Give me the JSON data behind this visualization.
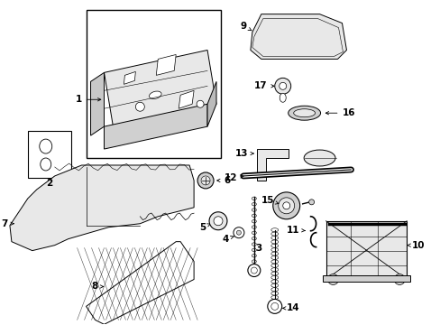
{
  "background": "#ffffff",
  "lc": "#000000",
  "gray": "#d0d0d0",
  "lightgray": "#e8e8e8",
  "fs": 7.5,
  "fw": "bold",
  "fig_w": 4.89,
  "fig_h": 3.6,
  "dpi": 100
}
